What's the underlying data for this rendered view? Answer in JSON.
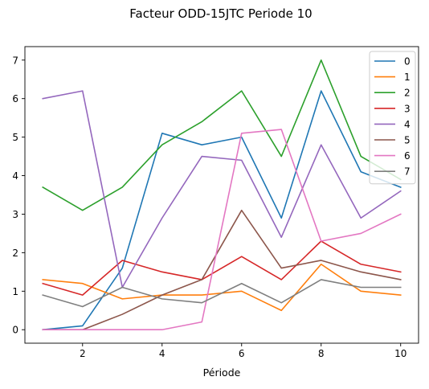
{
  "chart_data": {
    "type": "line",
    "title": "Facteur ODD-15JTC Periode 10",
    "xlabel": "Période",
    "ylabel": "",
    "x": [
      1,
      2,
      3,
      4,
      5,
      6,
      7,
      8,
      9,
      10
    ],
    "xlim": [
      0.55,
      10.45
    ],
    "ylim": [
      -0.35,
      7.35
    ],
    "xticks": [
      2,
      4,
      6,
      8,
      10
    ],
    "yticks": [
      0,
      1,
      2,
      3,
      4,
      5,
      6,
      7
    ],
    "grid": false,
    "legend_position": "top-right",
    "series": [
      {
        "name": "0",
        "color": "#1f77b4",
        "values": [
          0.0,
          0.1,
          1.6,
          5.1,
          4.8,
          5.0,
          2.9,
          6.2,
          4.1,
          3.7
        ]
      },
      {
        "name": "1",
        "color": "#ff7f0e",
        "values": [
          1.3,
          1.2,
          0.8,
          0.9,
          0.9,
          1.0,
          0.5,
          1.7,
          1.0,
          0.9
        ]
      },
      {
        "name": "2",
        "color": "#2ca02c",
        "values": [
          3.7,
          3.1,
          3.7,
          4.8,
          5.4,
          6.2,
          4.5,
          7.0,
          4.5,
          3.9
        ]
      },
      {
        "name": "3",
        "color": "#d62728",
        "values": [
          1.2,
          0.9,
          1.8,
          1.5,
          1.3,
          1.9,
          1.3,
          2.3,
          1.7,
          1.5
        ]
      },
      {
        "name": "4",
        "color": "#9467bd",
        "values": [
          6.0,
          6.2,
          1.1,
          2.9,
          4.5,
          4.4,
          2.4,
          4.8,
          2.9,
          3.6
        ]
      },
      {
        "name": "5",
        "color": "#8c564b",
        "values": [
          0.0,
          0.0,
          0.4,
          0.9,
          1.3,
          3.1,
          1.6,
          1.8,
          1.5,
          1.3
        ]
      },
      {
        "name": "6",
        "color": "#e377c2",
        "values": [
          0.0,
          0.0,
          0.0,
          0.0,
          0.2,
          5.1,
          5.2,
          2.3,
          2.5,
          3.0
        ]
      },
      {
        "name": "7",
        "color": "#7f7f7f",
        "values": [
          0.9,
          0.6,
          1.1,
          0.8,
          0.7,
          1.2,
          0.7,
          1.3,
          1.1,
          1.1
        ]
      }
    ]
  }
}
